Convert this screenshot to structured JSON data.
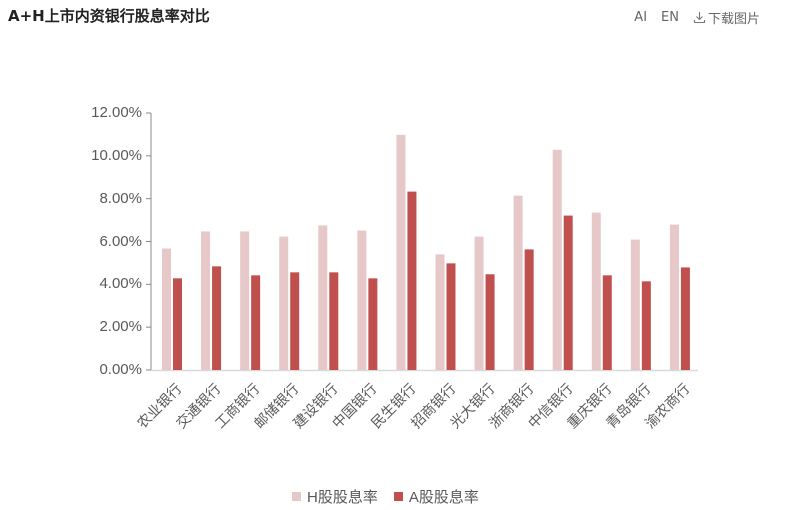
{
  "header": {
    "title": "A+H上市内资银行股息率对比",
    "ai_label": "AI",
    "lang_label": "EN",
    "download_label": "下载图片",
    "download_icon": "download-icon"
  },
  "colors": {
    "h_share": "#e6c8c8",
    "a_share": "#c0504d",
    "axis": "#888888",
    "baseline": "#d9d9d9"
  },
  "chart_data": {
    "type": "bar",
    "title": "A+H上市内资银行股息率对比",
    "xlabel": "",
    "ylabel": "",
    "ylim": [
      0,
      12
    ],
    "yticks": [
      "0.00%",
      "2.00%",
      "4.00%",
      "6.00%",
      "8.00%",
      "10.00%",
      "12.00%"
    ],
    "grid": false,
    "legend_position": "bottom",
    "categories": [
      "农业银行",
      "交通银行",
      "工商银行",
      "邮储银行",
      "建设银行",
      "中国银行",
      "民生银行",
      "招商银行",
      "光大银行",
      "浙商银行",
      "中信银行",
      "重庆银行",
      "青岛银行",
      "渝农商行"
    ],
    "series": [
      {
        "name": "H股股息率",
        "color": "#e6c8c8",
        "values": [
          5.67,
          6.47,
          6.47,
          6.23,
          6.75,
          6.51,
          10.98,
          5.4,
          6.23,
          8.14,
          10.28,
          7.35,
          6.09,
          6.79
        ]
      },
      {
        "name": "A股股息率",
        "color": "#c0504d",
        "values": [
          4.28,
          4.84,
          4.42,
          4.56,
          4.56,
          4.28,
          8.33,
          4.98,
          4.47,
          5.63,
          7.21,
          4.42,
          4.14,
          4.79
        ]
      }
    ]
  },
  "legend": {
    "items": [
      {
        "label": "H股股息率"
      },
      {
        "label": "A股股息率"
      }
    ]
  }
}
